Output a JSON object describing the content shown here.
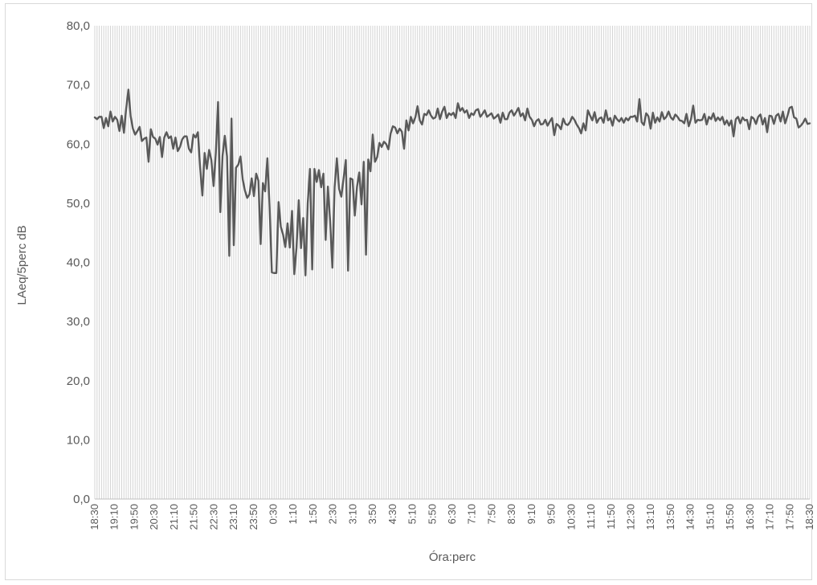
{
  "chart_data": {
    "type": "line",
    "title": "",
    "xlabel": "Óra:perc",
    "ylabel": "LAeq/5perc dB",
    "ylim": [
      0,
      80
    ],
    "yticks": [
      "0,0",
      "10,0",
      "20,0",
      "30,0",
      "40,0",
      "50,0",
      "60,0",
      "70,0",
      "80,0"
    ],
    "x_tick_labels": [
      "18:30",
      "19:10",
      "19:50",
      "20:30",
      "21:10",
      "21:50",
      "22:30",
      "23:10",
      "23:50",
      "0:30",
      "1:10",
      "1:50",
      "2:30",
      "3:10",
      "3:50",
      "4:30",
      "5:10",
      "5:50",
      "6:30",
      "7:10",
      "7:50",
      "8:30",
      "9:10",
      "9:50",
      "10:30",
      "11:10",
      "11:50",
      "12:30",
      "13:10",
      "13:50",
      "14:30",
      "15:10",
      "15:50",
      "16:30",
      "17:10",
      "17:50",
      "18:30"
    ],
    "grid": "vertical minor gridlines every 5 minutes",
    "legend": "none",
    "line_color": "#595959",
    "x_start": "18:30",
    "x_step_minutes": 5,
    "series": [
      {
        "values": [
          64.5,
          64.2,
          64.6,
          64.6,
          62.7,
          64.4,
          63.0,
          65.5,
          63.8,
          64.6,
          64.1,
          62.2,
          64.8,
          61.9,
          66.0,
          69.2,
          64.7,
          62.6,
          61.6,
          62.2,
          62.9,
          60.5,
          60.9,
          61.1,
          57.0,
          62.5,
          61.2,
          60.9,
          59.9,
          61.2,
          57.8,
          61.1,
          62.0,
          61.0,
          61.3,
          59.2,
          61.1,
          58.8,
          59.5,
          60.8,
          61.3,
          61.3,
          59.2,
          58.6,
          61.6,
          61.1,
          62.0,
          56.0,
          51.3,
          58.5,
          55.8,
          59.0,
          57.3,
          52.9,
          58.5,
          67.1,
          48.5,
          58.0,
          61.4,
          57.9,
          41.1,
          64.3,
          42.9,
          56.0,
          56.5,
          57.9,
          54.0,
          52.1,
          50.9,
          51.5,
          54.2,
          51.2,
          55.0,
          53.8,
          43.1,
          53.4,
          52.0,
          57.6,
          49.3,
          38.3,
          38.2,
          38.2,
          50.2,
          46.0,
          44.7,
          42.6,
          46.6,
          42.5,
          48.7,
          38.0,
          42.5,
          50.5,
          42.4,
          47.5,
          37.8,
          50.0,
          55.8,
          38.8,
          55.8,
          53.6,
          55.6,
          52.7,
          55.0,
          43.8,
          52.8,
          47.0,
          39.1,
          52.7,
          57.6,
          52.4,
          51.1,
          54.2,
          57.3,
          38.6,
          54.2,
          54.0,
          47.9,
          52.8,
          55.2,
          49.8,
          57.0,
          41.3,
          57.4,
          55.4,
          61.6,
          57.0,
          57.8,
          60.2,
          59.5,
          60.4,
          60.0,
          59.1,
          61.8,
          63.0,
          62.8,
          61.8,
          62.6,
          62.1,
          59.2,
          64.0,
          62.3,
          64.6,
          63.5,
          64.5,
          66.4,
          64.0,
          63.3,
          65.1,
          64.9,
          65.7,
          64.8,
          64.3,
          64.5,
          66.0,
          64.2,
          65.5,
          66.3,
          64.4,
          65.2,
          64.9,
          65.3,
          64.4,
          66.9,
          65.6,
          66.1,
          65.3,
          65.7,
          64.4,
          65.2,
          64.9,
          65.7,
          65.9,
          64.6,
          65.1,
          65.7,
          64.6,
          64.9,
          65.2,
          64.3,
          64.6,
          65.0,
          63.6,
          65.3,
          64.2,
          64.2,
          65.3,
          65.7,
          64.8,
          65.4,
          66.1,
          64.7,
          65.2,
          64.0,
          66.0,
          64.6,
          64.1,
          63.0,
          63.9,
          64.2,
          63.3,
          63.4,
          64.1,
          63.1,
          63.8,
          64.4,
          61.5,
          63.4,
          63.1,
          62.5,
          64.3,
          63.4,
          63.2,
          63.7,
          64.6,
          64.1,
          63.3,
          62.7,
          61.8,
          63.5,
          62.3,
          65.7,
          64.8,
          64.0,
          65.4,
          63.6,
          64.3,
          64.5,
          63.6,
          65.7,
          64.0,
          64.4,
          63.1,
          64.8,
          64.2,
          63.8,
          64.4,
          63.6,
          64.4,
          64.0,
          64.6,
          64.6,
          64.8,
          63.8,
          67.6,
          63.7,
          63.2,
          65.2,
          64.7,
          62.6,
          65.3,
          63.6,
          64.5,
          63.8,
          65.4,
          64.2,
          64.6,
          65.5,
          64.5,
          64.1,
          65.0,
          64.6,
          64.0,
          63.9,
          63.5,
          65.1,
          63.0,
          64.2,
          66.5,
          63.6,
          64.1,
          64.0,
          64.1,
          65.1,
          63.3,
          64.6,
          64.2,
          65.2,
          63.9,
          64.5,
          64.0,
          64.6,
          63.3,
          64.0,
          63.1,
          64.0,
          61.3,
          64.2,
          64.6,
          63.5,
          64.5,
          64.0,
          64.1,
          62.5,
          64.6,
          64.3,
          63.4,
          64.6,
          65.0,
          63.3,
          64.4,
          62.0,
          64.8,
          64.7,
          63.4,
          64.8,
          65.1,
          63.8,
          65.5,
          63.5,
          64.7,
          66.1,
          66.3,
          64.5,
          64.3,
          62.8,
          63.1,
          63.6,
          64.3,
          63.4,
          63.5
        ]
      }
    ]
  }
}
